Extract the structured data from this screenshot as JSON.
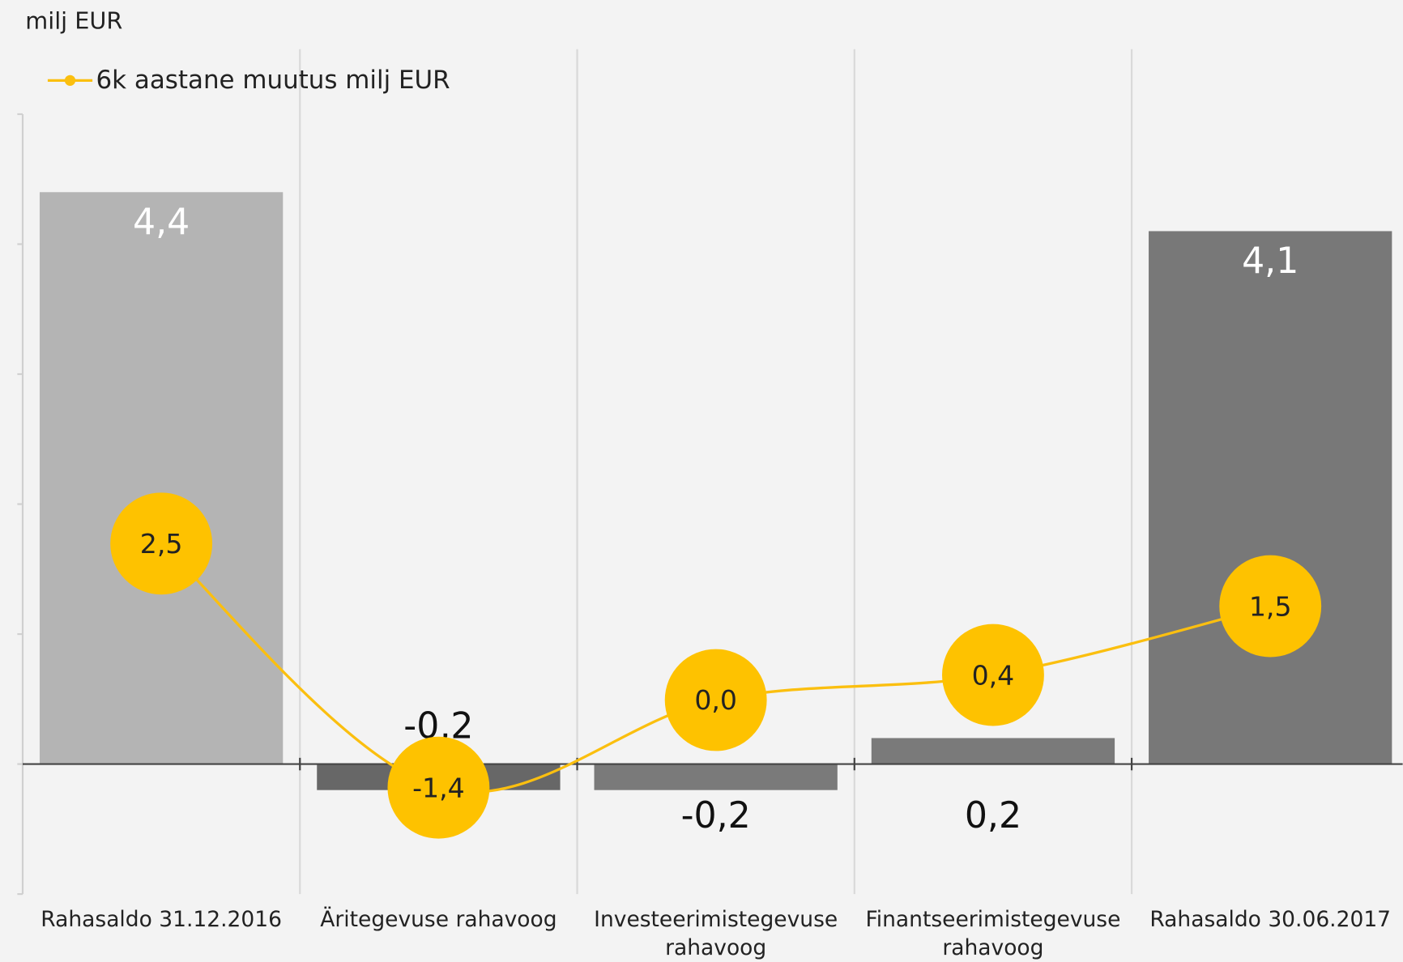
{
  "chart_data": {
    "type": "bar",
    "unit_label": "milj EUR",
    "categories": [
      "Rahasaldo 31.12.2016",
      "Äritegevuse rahavoog",
      "Investeerimistegevuse rahavoog",
      "Finantseerimistegevuse rahavoog",
      "Rahasaldo 30.06.2017"
    ],
    "series": [
      {
        "type": "bar",
        "colors": [
          "#b4b4b4",
          "#676767",
          "#7a7a7a",
          "#7a7a7a",
          "#787878"
        ],
        "values": [
          4.4,
          -0.2,
          -0.2,
          0.2,
          4.1
        ],
        "value_labels": [
          "4,4",
          "-0,2",
          "-0,2",
          "0,2",
          "4,1"
        ]
      },
      {
        "type": "line",
        "name": "6k aastane muutus milj EUR",
        "color": "#fbbf0f",
        "axis": "y2",
        "values": [
          2.5,
          -1.4,
          0.0,
          0.4,
          1.5
        ],
        "value_labels": [
          "2,5",
          "-1,4",
          "0,0",
          "0,4",
          "1,5"
        ]
      }
    ],
    "ylim": [
      -1,
      5.5
    ],
    "yticks": [
      -1,
      0,
      1,
      2,
      3,
      4,
      5
    ],
    "y2lim": [
      -3.1,
      10.4
    ],
    "legend": "top-left",
    "grid": true
  }
}
